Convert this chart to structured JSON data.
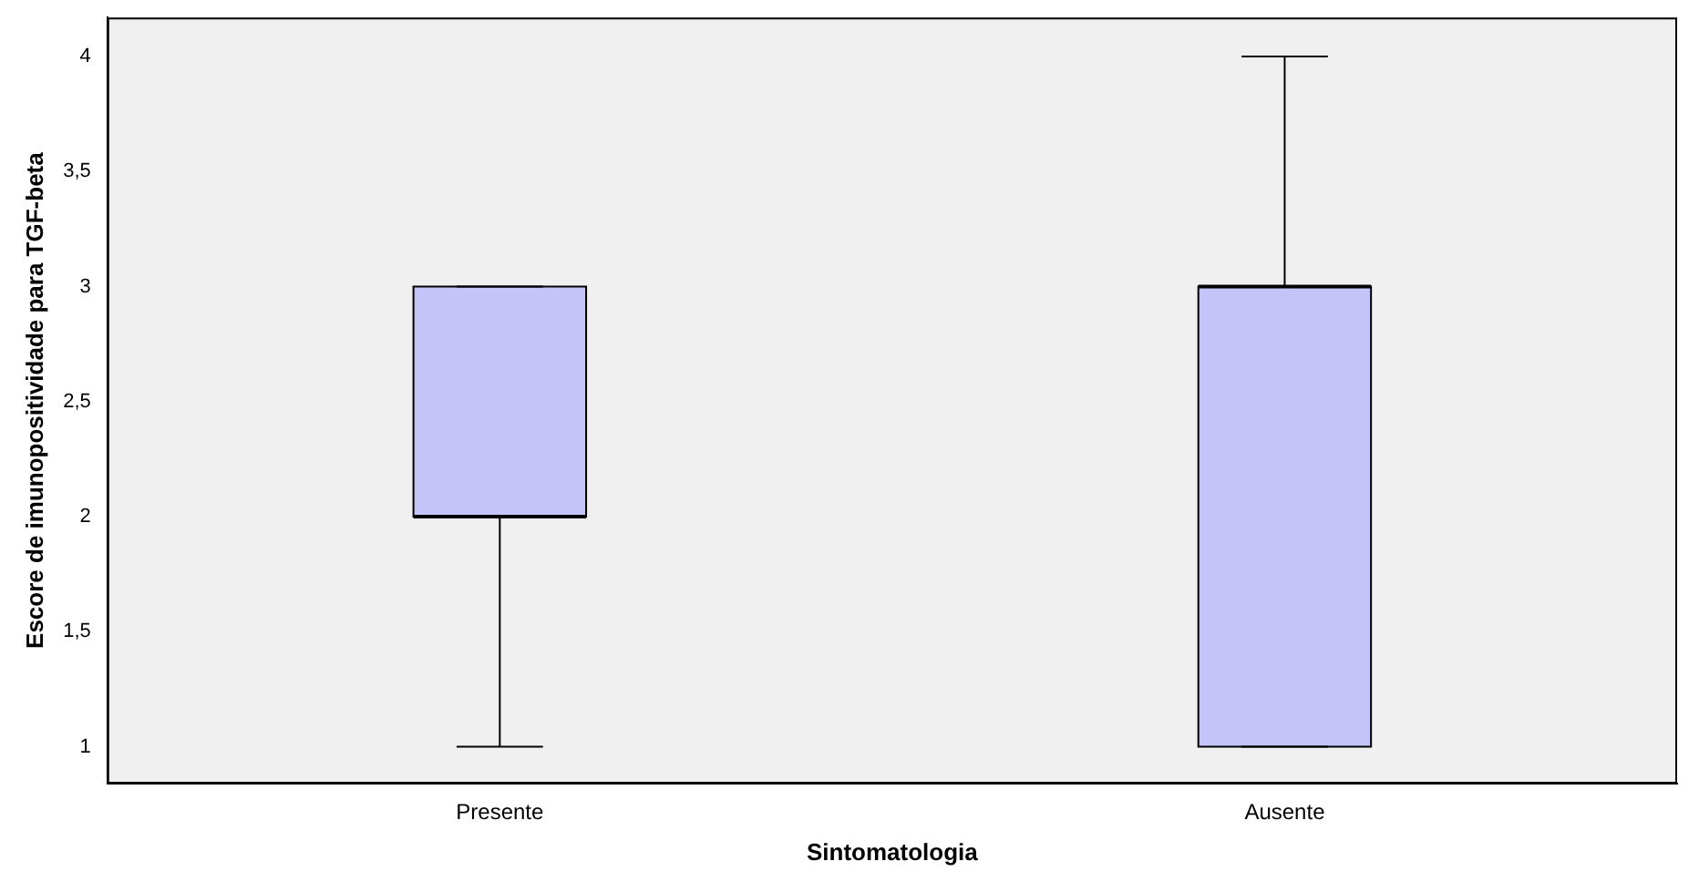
{
  "chart_data": {
    "type": "box",
    "xlabel": "Sintomatologia",
    "ylabel": "Escore de imunopositividade para TGF-beta",
    "categories": [
      "Presente",
      "Ausente"
    ],
    "boxes": [
      {
        "low": 1,
        "q1": 2,
        "median": 2,
        "q3": 3,
        "high": 3
      },
      {
        "low": 1,
        "q1": 1,
        "median": 3,
        "q3": 3,
        "high": 4
      }
    ],
    "color": "#c4c4f8",
    "ylim": [
      0.84,
      4.17
    ],
    "yticks": [
      1,
      {
        "value": 1.5,
        "label": "1,5"
      },
      2,
      {
        "value": 2.5,
        "label": "2,5"
      },
      3,
      {
        "value": 3.5,
        "label": "3,5"
      },
      4
    ]
  }
}
